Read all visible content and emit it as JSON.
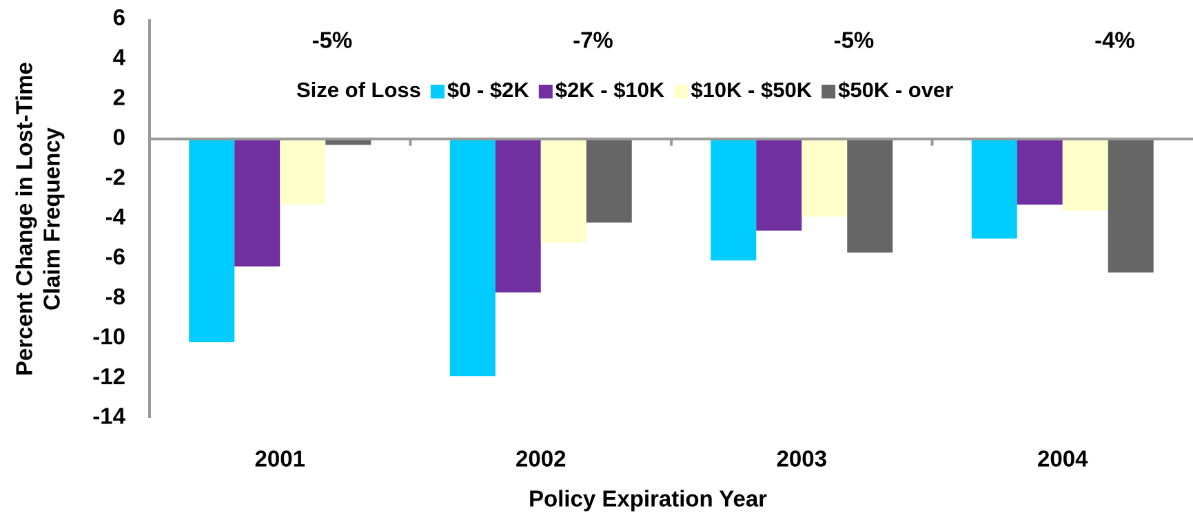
{
  "chart_data": {
    "type": "bar",
    "categories": [
      "2001",
      "2002",
      "2003",
      "2004"
    ],
    "series": [
      {
        "name": "$0 - $2K",
        "color": "#00ccff",
        "values": [
          -10.2,
          -11.9,
          -6.1,
          -5.0
        ]
      },
      {
        "name": "$2K - $10K",
        "color": "#7030a0",
        "values": [
          -6.4,
          -7.7,
          -4.6,
          -3.3
        ]
      },
      {
        "name": "$10K - $50K",
        "color": "#ffffcc",
        "values": [
          -3.3,
          -5.2,
          -3.9,
          -3.6
        ]
      },
      {
        "name": "$50K - over",
        "color": "#666666",
        "values": [
          -0.3,
          -4.2,
          -5.7,
          -6.7
        ]
      }
    ],
    "annotations": [
      "-5%",
      "-7%",
      "-5%",
      "-4%"
    ],
    "legend_title": "Size of Loss",
    "xlabel": "Policy Expiration Year",
    "ylabel": [
      "Percent Change in Lost-Time",
      "Claim Frequency"
    ],
    "ylim": [
      -14,
      6
    ],
    "yticks": [
      -14,
      -12,
      -10,
      -8,
      -6,
      -4,
      -2,
      0,
      2,
      4,
      6
    ],
    "grid": false,
    "legend_position": "top"
  }
}
